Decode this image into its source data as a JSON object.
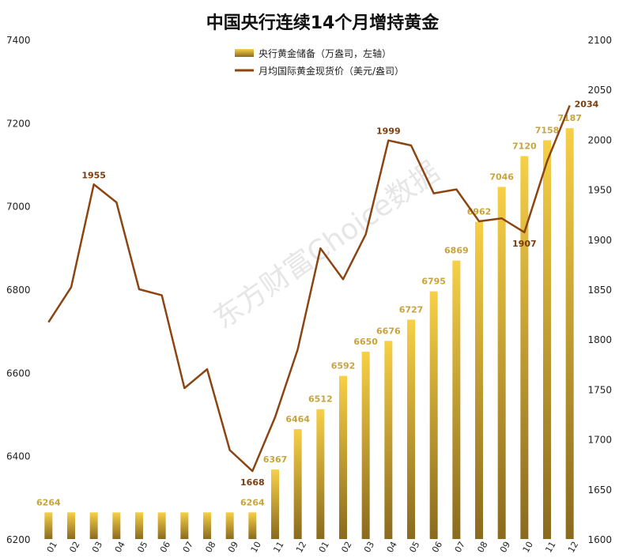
{
  "chart_data": {
    "type": "bar",
    "title": "中国央行连续14个月增持黄金",
    "watermark": "东方财富Choice数据",
    "categories": [
      "2022-01",
      "2022-02",
      "2022-03",
      "2022-04",
      "2022-05",
      "2022-06",
      "2022-07",
      "2022-08",
      "2022-09",
      "2022-10",
      "2022-11",
      "2022-12",
      "2023-01",
      "2023-02",
      "2023-03",
      "2023-04",
      "2023-05",
      "2023-06",
      "2023-07",
      "2023-08",
      "2023-09",
      "2023-10",
      "2023-11",
      "2023-12"
    ],
    "x_tick_labels": [
      "01",
      "02",
      "03",
      "04",
      "05",
      "06",
      "07",
      "08",
      "09",
      "10",
      "11",
      "12",
      "01",
      "02",
      "03",
      "04",
      "05",
      "06",
      "07",
      "08",
      "09",
      "10",
      "11",
      "12"
    ],
    "series": [
      {
        "name": "央行黄金储备（万盎司，左轴）",
        "type": "bar",
        "axis": "left",
        "values": [
          6264,
          6264,
          6264,
          6264,
          6264,
          6264,
          6264,
          6264,
          6264,
          6264,
          6367,
          6464,
          6512,
          6592,
          6650,
          6676,
          6727,
          6795,
          6869,
          6962,
          7046,
          7120,
          7158,
          7187
        ],
        "data_labels": [
          "6264",
          "",
          "",
          "",
          "",
          "",
          "",
          "",
          "",
          "6264",
          "6367",
          "6464",
          "6512",
          "6592",
          "6650",
          "6676",
          "6727",
          "6795",
          "6869",
          "6962",
          "7046",
          "7120",
          "7158",
          "7187"
        ]
      },
      {
        "name": "月均国际黄金现货价（美元/盎司）",
        "type": "line",
        "axis": "right",
        "values": [
          1817,
          1852,
          1955,
          1937,
          1850,
          1844,
          1751,
          1770,
          1689,
          1668,
          1722,
          1790,
          1891,
          1860,
          1905,
          1999,
          1994,
          1946,
          1950,
          1918,
          1921,
          1907,
          1978,
          2034
        ],
        "data_labels": [
          "",
          "",
          "1955",
          "",
          "",
          "",
          "",
          "",
          "",
          "1668",
          "",
          "",
          "",
          "",
          "",
          "1999",
          "",
          "",
          "",
          "",
          "",
          "1907",
          "",
          "2034"
        ]
      }
    ],
    "y_left": {
      "min": 6200,
      "max": 7400,
      "ticks": [
        "6200",
        "6400",
        "6600",
        "6800",
        "7000",
        "7200",
        "7400"
      ]
    },
    "y_right": {
      "min": 1600,
      "max": 2100,
      "ticks": [
        "1600",
        "1650",
        "1700",
        "1750",
        "1800",
        "1850",
        "1900",
        "1950",
        "2000",
        "2050",
        "2100"
      ]
    },
    "legend_position": "top-center",
    "colors": {
      "bar_top": "#F7D046",
      "bar_bottom": "#8A6A1E",
      "bar_label": "#C9A43A",
      "line": "#8B4513",
      "line_label": "#7A3E10",
      "watermark": "#E6E6E6"
    }
  }
}
